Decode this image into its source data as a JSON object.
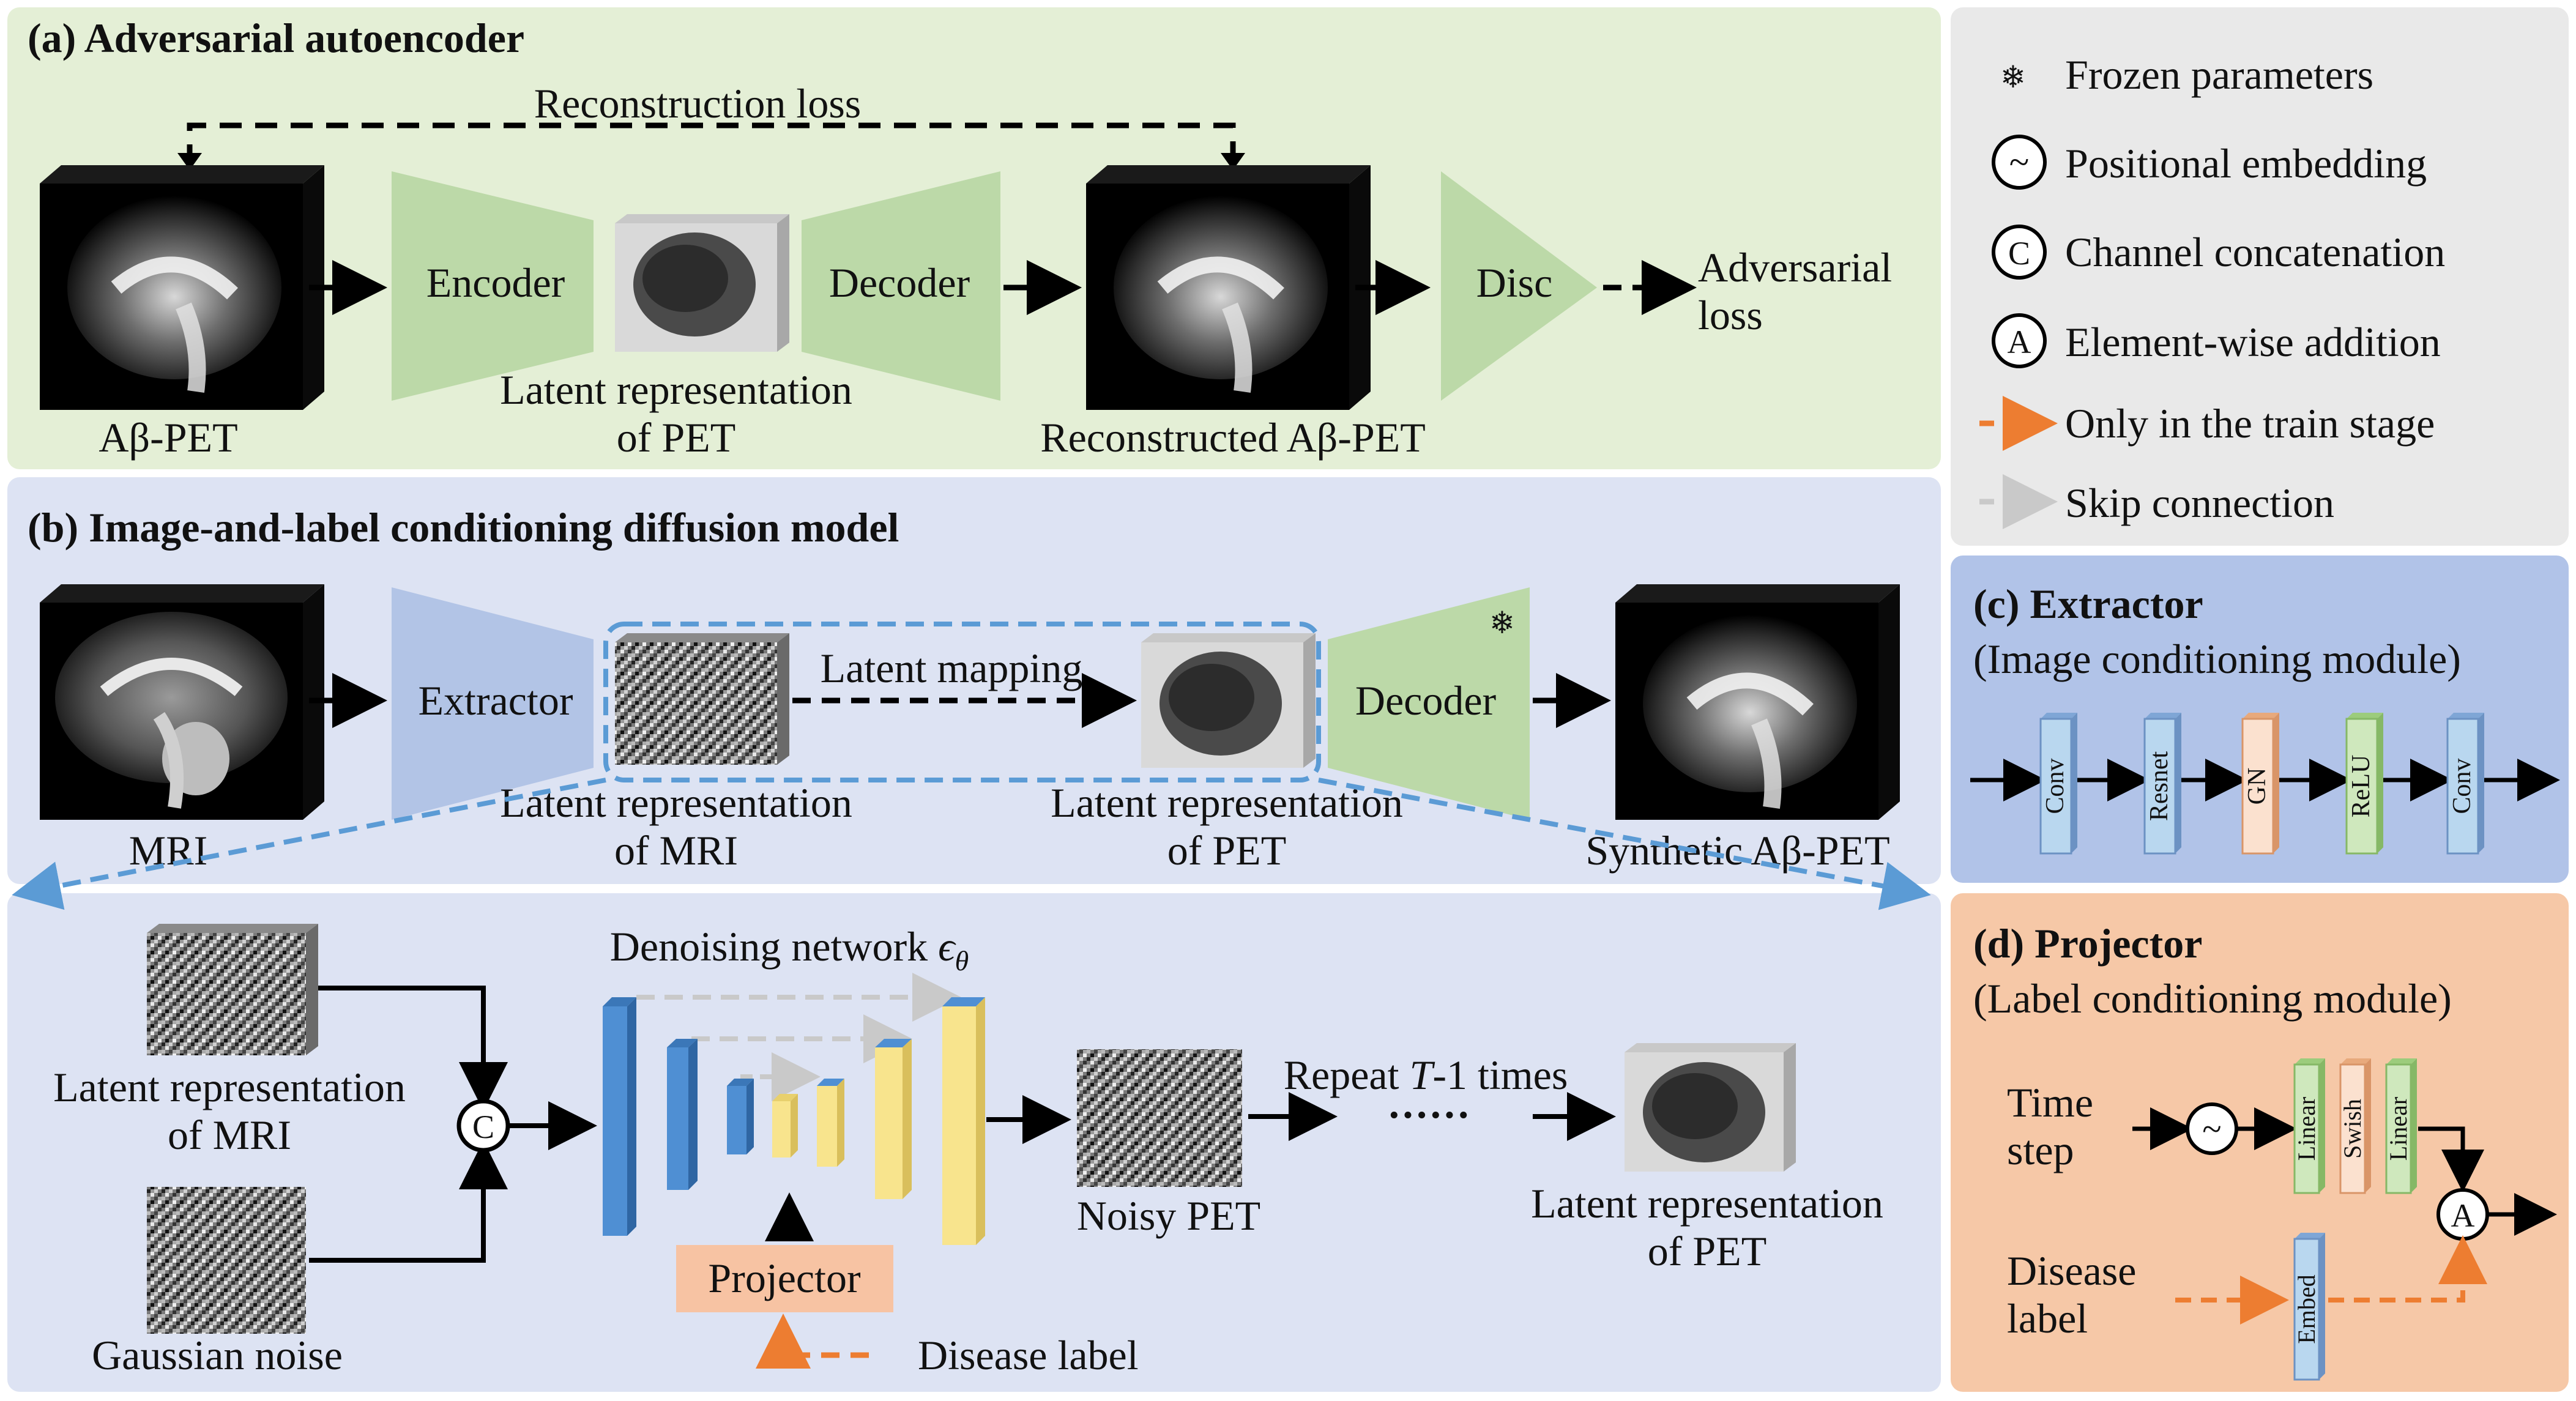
{
  "panel_a": {
    "title": "(a) Adversarial autoencoder",
    "reconstruction_loss": "Reconstruction loss",
    "input_label": "Aβ-PET",
    "encoder": "Encoder",
    "latent_line1": "Latent representation",
    "latent_line2": "of PET",
    "decoder": "Decoder",
    "reconstructed_label": "Reconstructed Aβ-PET",
    "disc": "Disc",
    "adversarial_line1": "Adversarial",
    "adversarial_line2": "loss"
  },
  "panel_b": {
    "title": "(b) Image-and-label conditioning diffusion model",
    "mri_label": "MRI",
    "extractor": "Extractor",
    "latent_mri_line1": "Latent representation",
    "latent_mri_line2": "of MRI",
    "latent_mapping": "Latent mapping",
    "latent_pet_line1": "Latent representation",
    "latent_pet_line2": "of PET",
    "decoder": "Decoder",
    "frozen_icon": "❄",
    "synthetic_label": "Synthetic Aβ-PET",
    "sub": {
      "latent_mri_line1": "Latent representation",
      "latent_mri_line2": "of MRI",
      "gaussian_noise": "Gaussian noise",
      "concat_symbol": "C",
      "denoising_prefix": "Denoising network ",
      "denoising_symbol": "ϵ",
      "denoising_sub": "θ",
      "projector": "Projector",
      "disease_label": "Disease label",
      "noisy_pet": "Noisy PET",
      "repeat_prefix": "Repeat ",
      "repeat_T": "T",
      "repeat_suffix": "-1 times",
      "dots": "······",
      "latent_pet_line1": "Latent representation",
      "latent_pet_line2": "of PET"
    }
  },
  "legend": {
    "frozen_icon": "❄",
    "frozen": "Frozen parameters",
    "positional_symbol": "~",
    "positional": "Positional embedding",
    "concat_symbol": "C",
    "concat": "Channel concatenation",
    "add_symbol": "A",
    "add": "Element-wise addition",
    "train_only": "Only in the train stage",
    "skip": "Skip connection"
  },
  "panel_c": {
    "title": "(c) Extractor",
    "subtitle": "(Image conditioning module)",
    "blocks": [
      "Conv",
      "Resnet",
      "GN",
      "ReLU",
      "Conv"
    ]
  },
  "panel_d": {
    "title": "(d) Projector",
    "subtitle": "(Label conditioning module)",
    "time_line1": "Time",
    "time_line2": "step",
    "positional_symbol": "~",
    "linear1": "Linear",
    "swish": "Swish",
    "linear2": "Linear",
    "add_symbol": "A",
    "disease_line1": "Disease",
    "disease_line2": "label",
    "embed": "Embed"
  },
  "colors": {
    "panel_a_bg": "#e4efd6",
    "panel_b_bg": "#dde3f3",
    "legend_bg": "#e9e9e9",
    "panel_c_bg": "#b1c3e8",
    "panel_d_bg": "#f6c8a7",
    "green_shape": "#bcd9a8",
    "blue_shape": "#b2c4e6",
    "unet_blue": "#4f8fd3",
    "unet_yellow": "#f8e48d",
    "projector_box": "#f7c3a3",
    "train_orange": "#ed7d31",
    "skip_gray": "#c9c9c9",
    "dashed_blue": "#5b9bd5",
    "block_blue": "#b9d7ef",
    "block_orange": "#fbe1cf",
    "block_green": "#cfe8bd"
  }
}
